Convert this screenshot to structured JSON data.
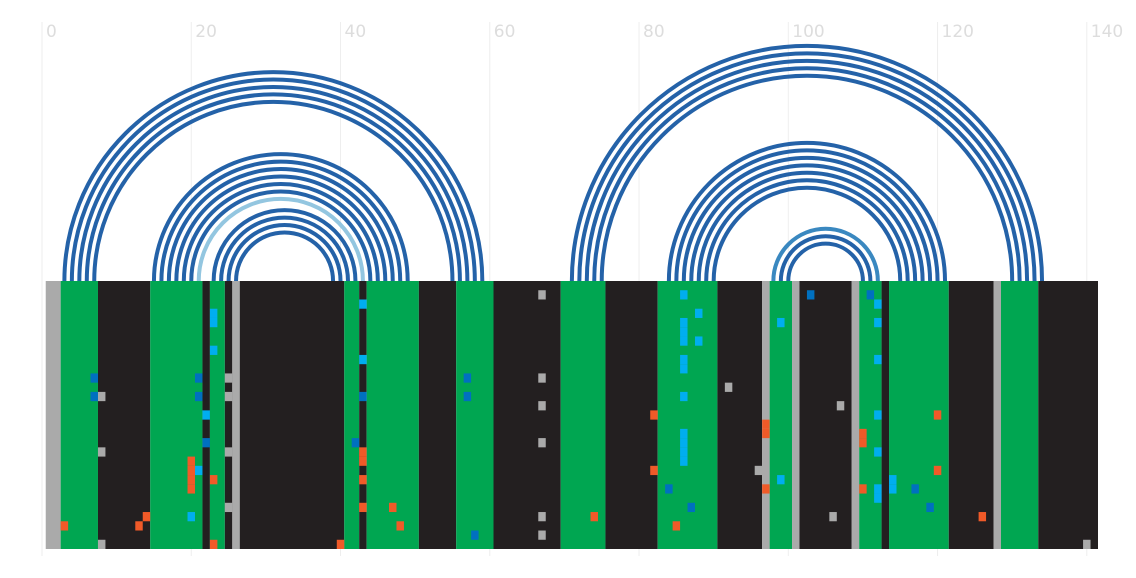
{
  "chart_data": {
    "type": "arc",
    "xlim": [
      0,
      141.5
    ],
    "xticks": [
      0,
      20,
      40,
      60,
      80,
      100,
      120,
      140
    ],
    "ylim": [
      0,
      29
    ],
    "grid": true,
    "arcs": [
      {
        "from": 3,
        "to": 59,
        "color": "#2462a8"
      },
      {
        "from": 4,
        "to": 58,
        "color": "#2462a8"
      },
      {
        "from": 5,
        "to": 57,
        "color": "#2462a8"
      },
      {
        "from": 6,
        "to": 56,
        "color": "#2462a8"
      },
      {
        "from": 7,
        "to": 55,
        "color": "#2462a8"
      },
      {
        "from": 15,
        "to": 49,
        "color": "#2462a8"
      },
      {
        "from": 16,
        "to": 48,
        "color": "#2462a8"
      },
      {
        "from": 17,
        "to": 47,
        "color": "#2462a8"
      },
      {
        "from": 18,
        "to": 46,
        "color": "#2462a8"
      },
      {
        "from": 19,
        "to": 45,
        "color": "#2462a8"
      },
      {
        "from": 20,
        "to": 44,
        "color": "#2462a8"
      },
      {
        "from": 21,
        "to": 43,
        "color": "#93c6e0"
      },
      {
        "from": 23,
        "to": 42,
        "color": "#2462a8"
      },
      {
        "from": 24,
        "to": 41,
        "color": "#2462a8"
      },
      {
        "from": 25,
        "to": 40,
        "color": "#2462a8"
      },
      {
        "from": 26,
        "to": 39,
        "color": "#2462a8"
      },
      {
        "from": 71,
        "to": 134,
        "color": "#2462a8"
      },
      {
        "from": 72,
        "to": 133,
        "color": "#2462a8"
      },
      {
        "from": 73,
        "to": 132,
        "color": "#2462a8"
      },
      {
        "from": 74,
        "to": 131,
        "color": "#2462a8"
      },
      {
        "from": 75,
        "to": 130,
        "color": "#2462a8"
      },
      {
        "from": 84,
        "to": 121,
        "color": "#2462a8"
      },
      {
        "from": 85,
        "to": 120,
        "color": "#2462a8"
      },
      {
        "from": 86,
        "to": 119,
        "color": "#2462a8"
      },
      {
        "from": 87,
        "to": 118,
        "color": "#2462a8"
      },
      {
        "from": 88,
        "to": 117,
        "color": "#2462a8"
      },
      {
        "from": 89,
        "to": 116,
        "color": "#2462a8"
      },
      {
        "from": 90,
        "to": 115,
        "color": "#2462a8"
      },
      {
        "from": 98,
        "to": 112,
        "color": "#3a88c0"
      },
      {
        "from": 99,
        "to": 111,
        "color": "#2462a8"
      },
      {
        "from": 100,
        "to": 110,
        "color": "#2462a8"
      }
    ],
    "bands": [
      {
        "start": 0.5,
        "end": 2.5,
        "color": "#aaaaaa"
      },
      {
        "start": 2.5,
        "end": 7.5,
        "color": "#00a651"
      },
      {
        "start": 7.5,
        "end": 14.5,
        "color": "#231f20"
      },
      {
        "start": 14.5,
        "end": 21.5,
        "color": "#00a651"
      },
      {
        "start": 21.5,
        "end": 22.5,
        "color": "#231f20"
      },
      {
        "start": 22.5,
        "end": 24.5,
        "color": "#00a651"
      },
      {
        "start": 24.5,
        "end": 25.5,
        "color": "#231f20"
      },
      {
        "start": 25.5,
        "end": 26.5,
        "color": "#aaaaaa"
      },
      {
        "start": 26.5,
        "end": 40.5,
        "color": "#231f20"
      },
      {
        "start": 40.5,
        "end": 42.5,
        "color": "#00a651"
      },
      {
        "start": 42.5,
        "end": 43.5,
        "color": "#231f20"
      },
      {
        "start": 43.5,
        "end": 50.5,
        "color": "#00a651"
      },
      {
        "start": 50.5,
        "end": 55.5,
        "color": "#231f20"
      },
      {
        "start": 55.5,
        "end": 60.5,
        "color": "#00a651"
      },
      {
        "start": 60.5,
        "end": 69.5,
        "color": "#231f20"
      },
      {
        "start": 69.5,
        "end": 75.5,
        "color": "#00a651"
      },
      {
        "start": 75.5,
        "end": 82.5,
        "color": "#231f20"
      },
      {
        "start": 82.5,
        "end": 90.5,
        "color": "#00a651"
      },
      {
        "start": 90.5,
        "end": 96.5,
        "color": "#231f20"
      },
      {
        "start": 96.5,
        "end": 97.5,
        "color": "#aaaaaa"
      },
      {
        "start": 97.5,
        "end": 100.5,
        "color": "#00a651"
      },
      {
        "start": 100.5,
        "end": 101.5,
        "color": "#aaaaaa"
      },
      {
        "start": 101.5,
        "end": 108.5,
        "color": "#231f20"
      },
      {
        "start": 108.5,
        "end": 109.5,
        "color": "#aaaaaa"
      },
      {
        "start": 109.5,
        "end": 112.5,
        "color": "#00a651"
      },
      {
        "start": 112.5,
        "end": 113.5,
        "color": "#231f20"
      },
      {
        "start": 113.5,
        "end": 121.5,
        "color": "#00a651"
      },
      {
        "start": 121.5,
        "end": 127.5,
        "color": "#231f20"
      },
      {
        "start": 127.5,
        "end": 128.5,
        "color": "#aaaaaa"
      },
      {
        "start": 128.5,
        "end": 133.5,
        "color": "#00a651"
      },
      {
        "start": 133.5,
        "end": 141.5,
        "color": "#231f20"
      }
    ],
    "cell_colors": [
      "#00aeef",
      "#0070c0",
      "#f05a28",
      "#aaaaaa"
    ],
    "cells": [
      [
        86,
        1,
        0
      ],
      [
        86,
        4,
        0
      ],
      [
        86,
        5,
        0
      ],
      [
        86,
        6,
        0
      ],
      [
        86,
        8,
        0
      ],
      [
        86,
        9,
        0
      ],
      [
        86,
        12,
        0
      ],
      [
        86,
        16,
        0
      ],
      [
        86,
        17,
        0
      ],
      [
        86,
        18,
        0
      ],
      [
        86,
        19,
        0
      ],
      [
        23,
        3,
        0
      ],
      [
        23,
        4,
        0
      ],
      [
        23,
        7,
        0
      ],
      [
        22,
        14,
        0
      ],
      [
        99,
        4,
        0
      ],
      [
        112,
        2,
        0
      ],
      [
        112,
        4,
        0
      ],
      [
        112,
        8,
        0
      ],
      [
        112,
        14,
        0
      ],
      [
        112,
        18,
        0
      ],
      [
        112,
        22,
        0
      ],
      [
        112,
        23,
        0
      ],
      [
        114,
        21,
        0
      ],
      [
        114,
        22,
        0
      ],
      [
        21,
        20,
        0
      ],
      [
        20,
        25,
        0
      ],
      [
        43,
        2,
        0
      ],
      [
        43,
        8,
        0
      ],
      [
        88,
        3,
        0
      ],
      [
        88,
        6,
        0
      ],
      [
        99,
        21,
        0
      ],
      [
        7,
        10,
        1
      ],
      [
        7,
        12,
        1
      ],
      [
        21,
        10,
        1
      ],
      [
        21,
        12,
        1
      ],
      [
        57,
        10,
        1
      ],
      [
        57,
        12,
        1
      ],
      [
        42,
        17,
        1
      ],
      [
        43,
        12,
        1
      ],
      [
        103,
        1,
        1
      ],
      [
        111,
        1,
        1
      ],
      [
        87,
        24,
        1
      ],
      [
        84,
        22,
        1
      ],
      [
        117,
        22,
        1
      ],
      [
        119,
        24,
        1
      ],
      [
        22,
        17,
        1
      ],
      [
        58,
        27,
        1
      ],
      [
        3,
        26,
        2
      ],
      [
        13,
        26,
        2
      ],
      [
        14,
        25,
        2
      ],
      [
        20,
        19,
        2
      ],
      [
        20,
        20,
        2
      ],
      [
        20,
        21,
        2
      ],
      [
        20,
        22,
        2
      ],
      [
        43,
        18,
        2
      ],
      [
        43,
        19,
        2
      ],
      [
        43,
        21,
        2
      ],
      [
        43,
        24,
        2
      ],
      [
        48,
        26,
        2
      ],
      [
        47,
        24,
        2
      ],
      [
        82,
        14,
        2
      ],
      [
        82,
        20,
        2
      ],
      [
        97,
        15,
        2
      ],
      [
        97,
        16,
        2
      ],
      [
        97,
        22,
        2
      ],
      [
        110,
        16,
        2
      ],
      [
        110,
        17,
        2
      ],
      [
        110,
        22,
        2
      ],
      [
        120,
        14,
        2
      ],
      [
        120,
        20,
        2
      ],
      [
        126,
        25,
        2
      ],
      [
        74,
        25,
        2
      ],
      [
        40,
        28,
        2
      ],
      [
        23,
        21,
        2
      ],
      [
        23,
        28,
        2
      ],
      [
        85,
        26,
        2
      ],
      [
        8,
        12,
        3
      ],
      [
        8,
        18,
        3
      ],
      [
        8,
        28,
        3
      ],
      [
        25,
        10,
        3
      ],
      [
        25,
        12,
        3
      ],
      [
        25,
        18,
        3
      ],
      [
        25,
        24,
        3
      ],
      [
        67,
        1,
        3
      ],
      [
        67,
        10,
        3
      ],
      [
        67,
        13,
        3
      ],
      [
        67,
        17,
        3
      ],
      [
        67,
        25,
        3
      ],
      [
        67,
        27,
        3
      ],
      [
        92,
        11,
        3
      ],
      [
        96,
        20,
        3
      ],
      [
        107,
        13,
        3
      ],
      [
        106,
        25,
        3
      ],
      [
        140,
        28,
        3
      ]
    ]
  }
}
